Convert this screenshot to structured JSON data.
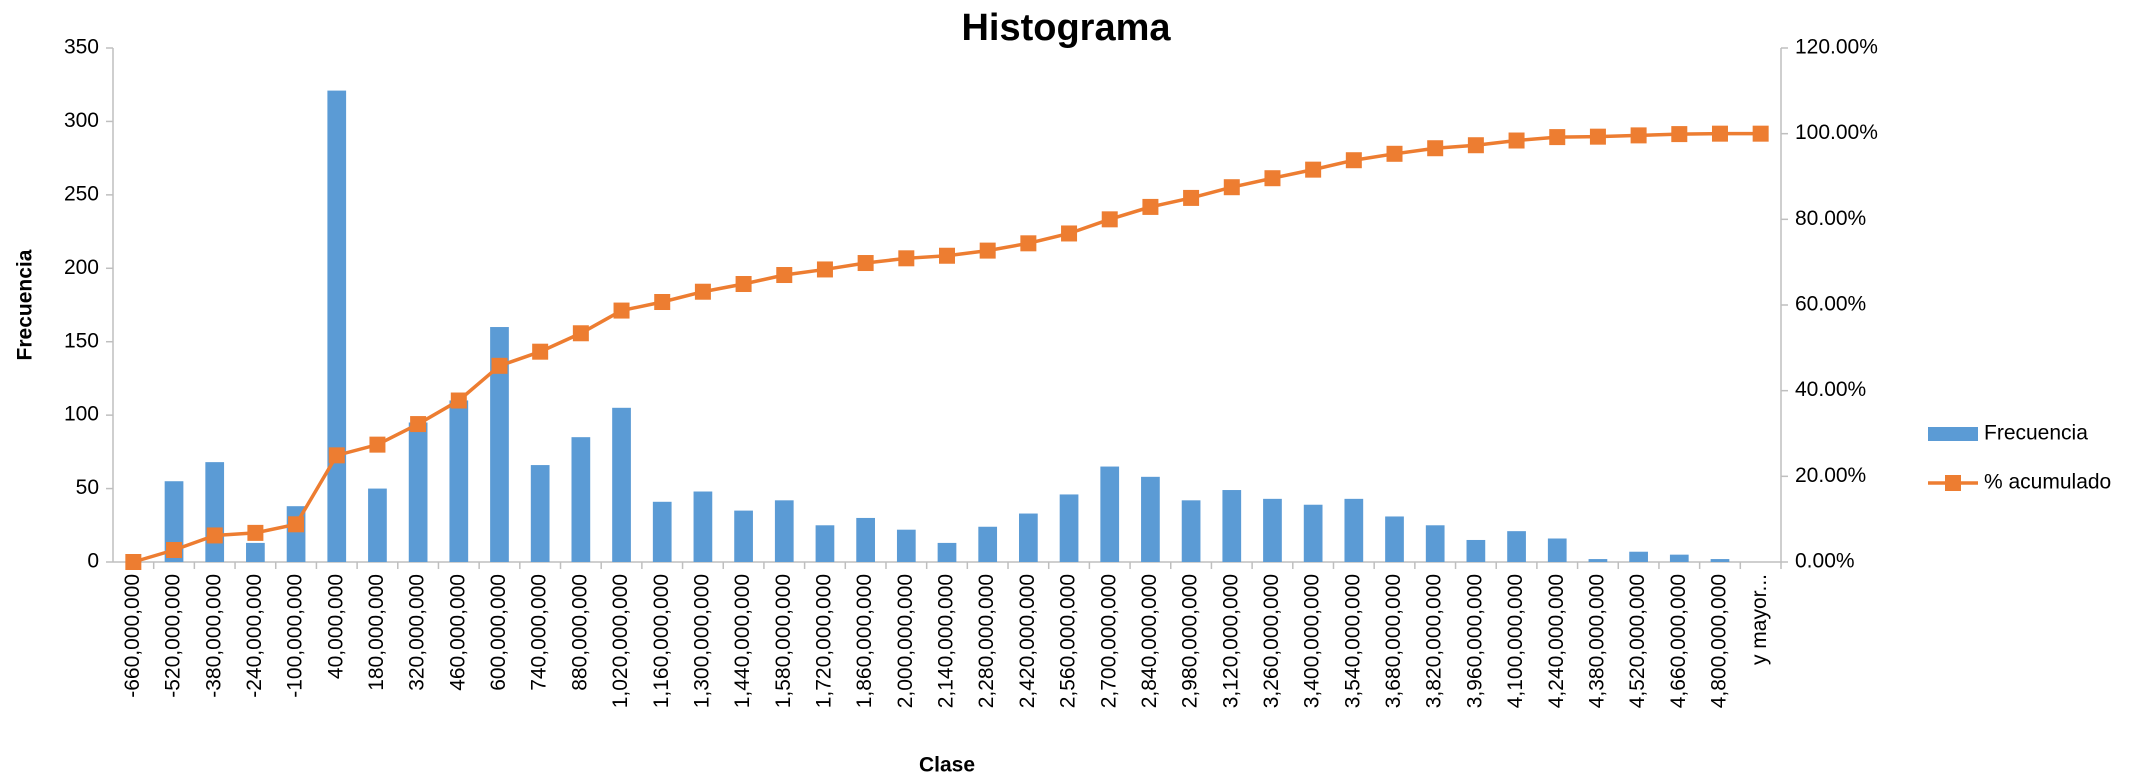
{
  "chart_data": {
    "type": "bar",
    "title": "Histograma",
    "x_label": "Clase",
    "y_label": "Frecuencia",
    "categories": [
      "-660,000,000",
      "-520,000,000",
      "-380,000,000",
      "-240,000,000",
      "-100,000,000",
      "40,000,000",
      "180,000,000",
      "320,000,000",
      "460,000,000",
      "600,000,000",
      "740,000,000",
      "880,000,000",
      "1,020,000,000",
      "1,160,000,000",
      "1,300,000,000",
      "1,440,000,000",
      "1,580,000,000",
      "1,720,000,000",
      "1,860,000,000",
      "2,000,000,000",
      "2,140,000,000",
      "2,280,000,000",
      "2,420,000,000",
      "2,560,000,000",
      "2,700,000,000",
      "2,840,000,000",
      "2,980,000,000",
      "3,120,000,000",
      "3,260,000,000",
      "3,400,000,000",
      "3,540,000,000",
      "3,680,000,000",
      "3,820,000,000",
      "3,960,000,000",
      "4,100,000,000",
      "4,240,000,000",
      "4,380,000,000",
      "4,520,000,000",
      "4,660,000,000",
      "4,800,000,000",
      "y mayor..."
    ],
    "series": [
      {
        "name": "Frecuencia",
        "type": "bar",
        "color": "#5b9bd5",
        "values": [
          0,
          55,
          68,
          13,
          38,
          321,
          50,
          95,
          110,
          160,
          66,
          85,
          105,
          41,
          48,
          35,
          42,
          25,
          30,
          22,
          13,
          24,
          33,
          46,
          65,
          58,
          42,
          49,
          43,
          39,
          43,
          31,
          25,
          15,
          21,
          16,
          2,
          7,
          5,
          2,
          0
        ]
      },
      {
        "name": "% acumulado",
        "type": "line",
        "axis": "y2",
        "color": "#ed7d31",
        "values": [
          0,
          2.8,
          6.2,
          6.8,
          8.8,
          24.9,
          27.4,
          32.2,
          37.7,
          45.8,
          49.1,
          53.4,
          58.7,
          60.7,
          63.1,
          64.9,
          67.0,
          68.3,
          69.8,
          70.9,
          71.5,
          72.7,
          74.4,
          76.7,
          80.0,
          82.9,
          85.0,
          87.5,
          89.6,
          91.6,
          93.8,
          95.3,
          96.6,
          97.3,
          98.4,
          99.2,
          99.3,
          99.6,
          99.9,
          100,
          100
        ]
      }
    ],
    "ylim": [
      0,
      350
    ],
    "yticks": [
      0,
      50,
      100,
      150,
      200,
      250,
      300,
      350
    ],
    "y2lim": [
      0,
      120
    ],
    "y2ticks": [
      {
        "value": 0,
        "label": "0.00%"
      },
      {
        "value": 20,
        "label": "20.00%"
      },
      {
        "value": 40,
        "label": "40.00%"
      },
      {
        "value": 60,
        "label": "60.00%"
      },
      {
        "value": 80,
        "label": "80.00%"
      },
      {
        "value": 100,
        "label": "100.00%"
      },
      {
        "value": 120,
        "label": "120.00%"
      }
    ],
    "legend": "right"
  }
}
